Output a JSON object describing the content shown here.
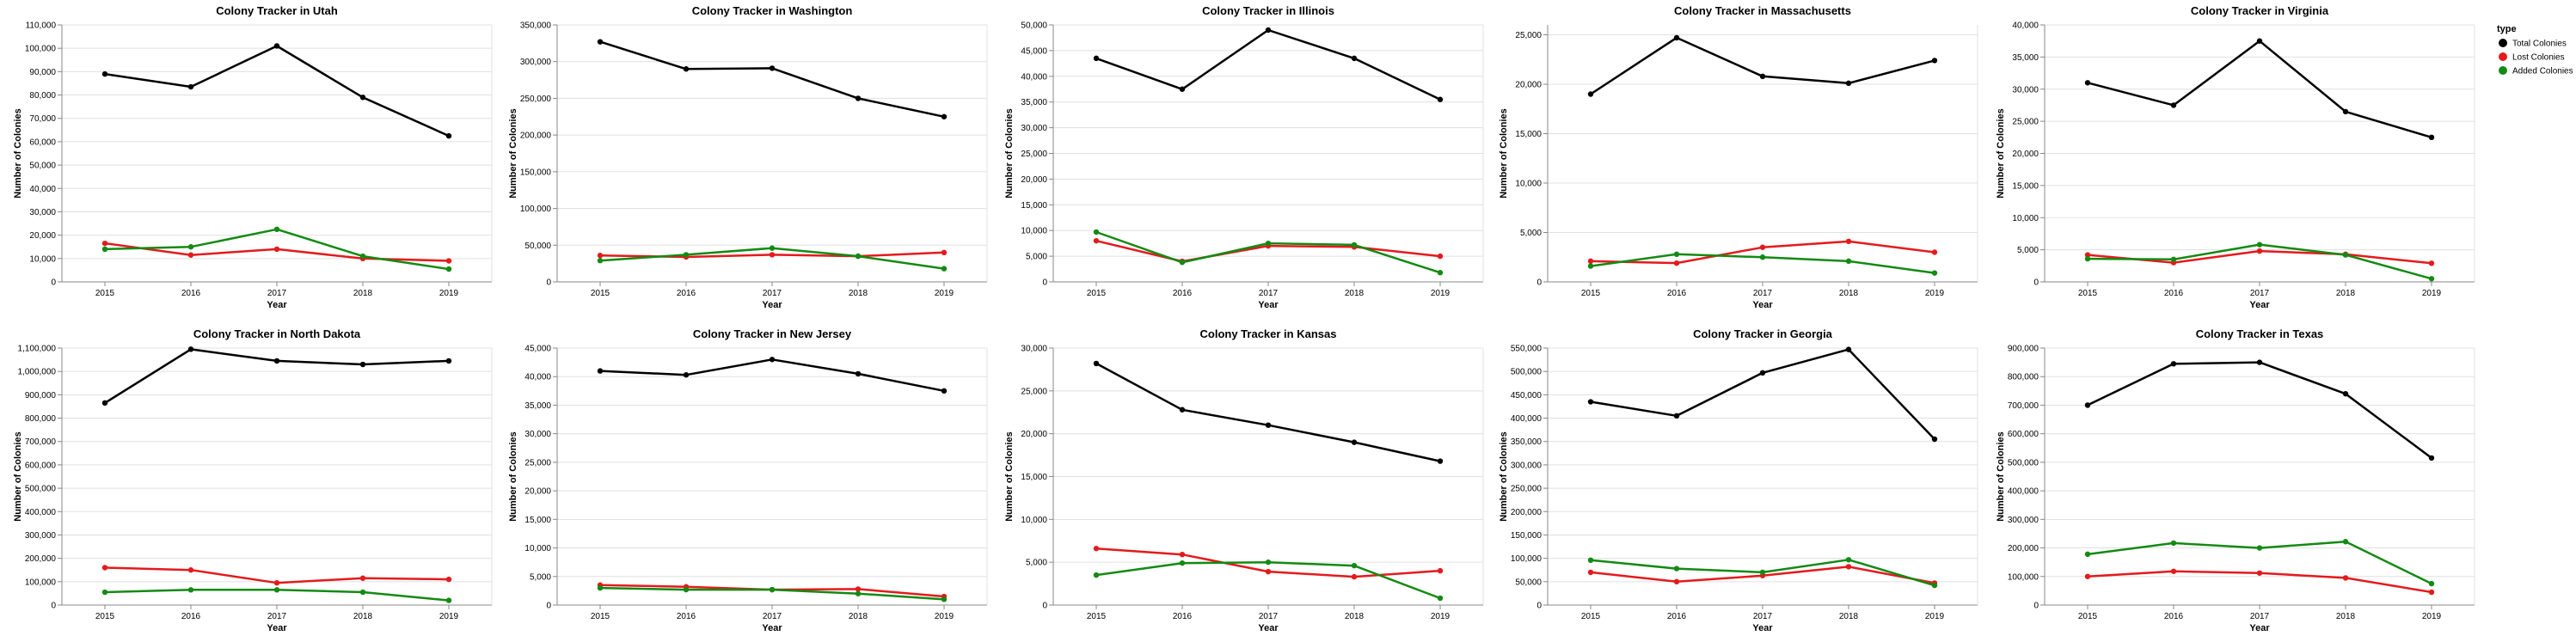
{
  "chart_data": {
    "type": "line",
    "x": [
      "2015",
      "2016",
      "2017",
      "2018",
      "2019"
    ],
    "xlabel": "Year",
    "ylabel": "Number of Colonies",
    "legend": {
      "title": "type",
      "placement": "top-right",
      "entries": [
        {
          "name": "Total Colonies",
          "color": "#000000"
        },
        {
          "name": "Lost Colonies",
          "color": "#e41a1c"
        },
        {
          "name": "Added Colonies",
          "color": "#138a13"
        }
      ]
    },
    "panels": [
      {
        "title": "Colony Tracker in Utah",
        "ylim": [
          0,
          110000
        ],
        "ystep": 10000,
        "series": [
          {
            "name": "Total Colonies",
            "values": [
              89000,
              83500,
              101000,
              79000,
              62500
            ]
          },
          {
            "name": "Lost Colonies",
            "values": [
              16500,
              11500,
              14000,
              10000,
              9000
            ]
          },
          {
            "name": "Added Colonies",
            "values": [
              14000,
              15000,
              22500,
              11000,
              5500
            ]
          }
        ]
      },
      {
        "title": "Colony Tracker in Washington",
        "ylim": [
          0,
          350000
        ],
        "ystep": 50000,
        "series": [
          {
            "name": "Total Colonies",
            "values": [
              327000,
              290000,
              291000,
              250000,
              225000
            ]
          },
          {
            "name": "Lost Colonies",
            "values": [
              36000,
              34000,
              37000,
              35000,
              40000
            ]
          },
          {
            "name": "Added Colonies",
            "values": [
              29000,
              37000,
              46000,
              35000,
              18000
            ]
          }
        ]
      },
      {
        "title": "Colony Tracker in Illinois",
        "ylim": [
          0,
          50000
        ],
        "ystep": 5000,
        "series": [
          {
            "name": "Total Colonies",
            "values": [
              43500,
              37500,
              49000,
              43500,
              35500
            ]
          },
          {
            "name": "Lost Colonies",
            "values": [
              8000,
              4000,
              7000,
              6800,
              5000
            ]
          },
          {
            "name": "Added Colonies",
            "values": [
              9700,
              3800,
              7500,
              7200,
              1800
            ]
          }
        ]
      },
      {
        "title": "Colony Tracker in Massachusetts",
        "ylim": [
          0,
          26000
        ],
        "ystep": 5000,
        "series": [
          {
            "name": "Total Colonies",
            "values": [
              19000,
              24700,
              20800,
              20100,
              22400
            ]
          },
          {
            "name": "Lost Colonies",
            "values": [
              2100,
              1900,
              3500,
              4100,
              3000
            ]
          },
          {
            "name": "Added Colonies",
            "values": [
              1600,
              2800,
              2500,
              2100,
              900
            ]
          }
        ]
      },
      {
        "title": "Colony Tracker in Virginia",
        "ylim": [
          0,
          40000
        ],
        "ystep": 5000,
        "series": [
          {
            "name": "Total Colonies",
            "values": [
              31000,
              27500,
              37500,
              26500,
              22500
            ]
          },
          {
            "name": "Lost Colonies",
            "values": [
              4200,
              3000,
              4800,
              4300,
              2900
            ]
          },
          {
            "name": "Added Colonies",
            "values": [
              3600,
              3500,
              5800,
              4200,
              500
            ]
          }
        ]
      },
      {
        "title": "Colony Tracker in North Dakota",
        "ylim": [
          0,
          1100000
        ],
        "ystep": 100000,
        "series": [
          {
            "name": "Total Colonies",
            "values": [
              865000,
              1095000,
              1045000,
              1030000,
              1045000
            ]
          },
          {
            "name": "Lost Colonies",
            "values": [
              160000,
              150000,
              95000,
              115000,
              110000
            ]
          },
          {
            "name": "Added Colonies",
            "values": [
              55000,
              65000,
              65000,
              55000,
              20000
            ]
          }
        ]
      },
      {
        "title": "Colony Tracker in New Jersey",
        "ylim": [
          0,
          45000
        ],
        "ystep": 5000,
        "series": [
          {
            "name": "Total Colonies",
            "values": [
              41000,
              40300,
              43000,
              40500,
              37500
            ]
          },
          {
            "name": "Lost Colonies",
            "values": [
              3500,
              3200,
              2700,
              2800,
              1500
            ]
          },
          {
            "name": "Added Colonies",
            "values": [
              3000,
              2700,
              2700,
              2000,
              1000
            ]
          }
        ]
      },
      {
        "title": "Colony Tracker in Kansas",
        "ylim": [
          0,
          30000
        ],
        "ystep": 5000,
        "series": [
          {
            "name": "Total Colonies",
            "values": [
              28200,
              22800,
              21000,
              19000,
              16800
            ]
          },
          {
            "name": "Lost Colonies",
            "values": [
              6600,
              5900,
              3900,
              3300,
              4000
            ]
          },
          {
            "name": "Added Colonies",
            "values": [
              3500,
              4900,
              5000,
              4600,
              800
            ]
          }
        ]
      },
      {
        "title": "Colony Tracker in Georgia",
        "ylim": [
          0,
          550000
        ],
        "ystep": 50000,
        "series": [
          {
            "name": "Total Colonies",
            "values": [
              435000,
              405000,
              497000,
              547000,
              355000
            ]
          },
          {
            "name": "Lost Colonies",
            "values": [
              70000,
              50000,
              63000,
              82000,
              47000
            ]
          },
          {
            "name": "Added Colonies",
            "values": [
              96000,
              78000,
              70000,
              97000,
              42000
            ]
          }
        ]
      },
      {
        "title": "Colony Tracker in Texas",
        "ylim": [
          0,
          900000
        ],
        "ystep": 100000,
        "series": [
          {
            "name": "Total Colonies",
            "values": [
              700000,
              845000,
              850000,
              740000,
              515000
            ]
          },
          {
            "name": "Lost Colonies",
            "values": [
              100000,
              118000,
              112000,
              95000,
              45000
            ]
          },
          {
            "name": "Added Colonies",
            "values": [
              178000,
              217000,
              200000,
              222000,
              75000
            ]
          }
        ]
      }
    ]
  }
}
